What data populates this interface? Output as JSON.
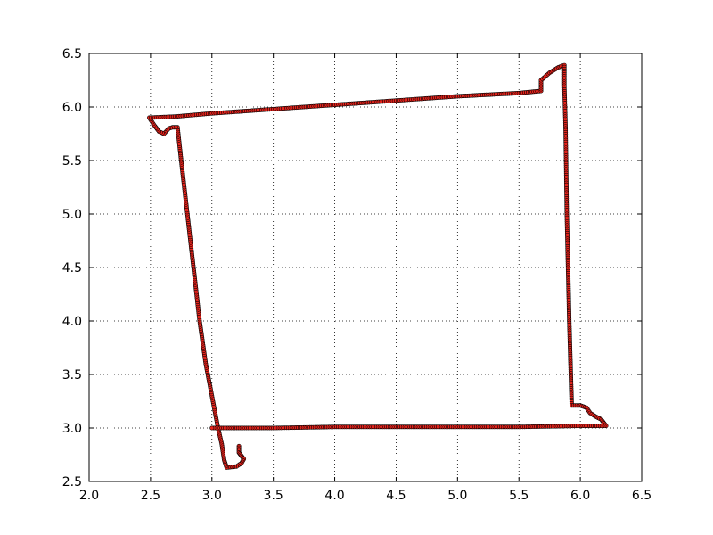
{
  "chart_data": {
    "type": "scatter",
    "title": "",
    "xlabel": "",
    "ylabel": "",
    "xlim": [
      2.0,
      6.5
    ],
    "ylim": [
      2.5,
      6.5
    ],
    "grid": true,
    "x_ticks": [
      "2.0",
      "2.5",
      "3.0",
      "3.5",
      "4.0",
      "4.5",
      "5.0",
      "5.5",
      "6.0",
      "6.5"
    ],
    "y_ticks": [
      "2.5",
      "3.0",
      "3.5",
      "4.0",
      "4.5",
      "5.0",
      "5.5",
      "6.0",
      "6.5"
    ],
    "marker_color": "#e8231c",
    "marker_edge_color": "#000000",
    "series": [
      {
        "path": [
          [
            3.22,
            2.83
          ],
          [
            3.22,
            2.77
          ],
          [
            3.24,
            2.74
          ],
          [
            3.26,
            2.71
          ],
          [
            3.24,
            2.67
          ],
          [
            3.2,
            2.64
          ],
          [
            3.12,
            2.63
          ],
          [
            3.1,
            2.7
          ],
          [
            3.08,
            2.85
          ],
          [
            3.05,
            3.0
          ],
          [
            3.0,
            3.3
          ],
          [
            2.95,
            3.6
          ],
          [
            2.9,
            4.0
          ],
          [
            2.85,
            4.5
          ],
          [
            2.8,
            5.0
          ],
          [
            2.75,
            5.5
          ],
          [
            2.72,
            5.81
          ],
          [
            2.68,
            5.81
          ],
          [
            2.65,
            5.8
          ],
          [
            2.61,
            5.75
          ],
          [
            2.57,
            5.77
          ],
          [
            2.53,
            5.83
          ],
          [
            2.49,
            5.9
          ],
          [
            2.7,
            5.91
          ],
          [
            3.0,
            5.94
          ],
          [
            3.5,
            5.98
          ],
          [
            4.0,
            6.02
          ],
          [
            4.5,
            6.06
          ],
          [
            5.0,
            6.1
          ],
          [
            5.5,
            6.13
          ],
          [
            5.68,
            6.15
          ],
          [
            5.68,
            6.25
          ],
          [
            5.75,
            6.32
          ],
          [
            5.82,
            6.37
          ],
          [
            5.87,
            6.39
          ],
          [
            5.87,
            6.2
          ],
          [
            5.88,
            5.8
          ],
          [
            5.89,
            5.0
          ],
          [
            5.9,
            4.5
          ],
          [
            5.91,
            4.0
          ],
          [
            5.92,
            3.6
          ],
          [
            5.93,
            3.21
          ],
          [
            6.0,
            3.21
          ],
          [
            6.05,
            3.19
          ],
          [
            6.08,
            3.14
          ],
          [
            6.12,
            3.11
          ],
          [
            6.17,
            3.08
          ],
          [
            6.21,
            3.02
          ],
          [
            6.0,
            3.02
          ],
          [
            5.5,
            3.01
          ],
          [
            5.0,
            3.01
          ],
          [
            4.5,
            3.01
          ],
          [
            4.0,
            3.01
          ],
          [
            3.5,
            3.0
          ],
          [
            3.0,
            3.0
          ]
        ]
      }
    ]
  }
}
